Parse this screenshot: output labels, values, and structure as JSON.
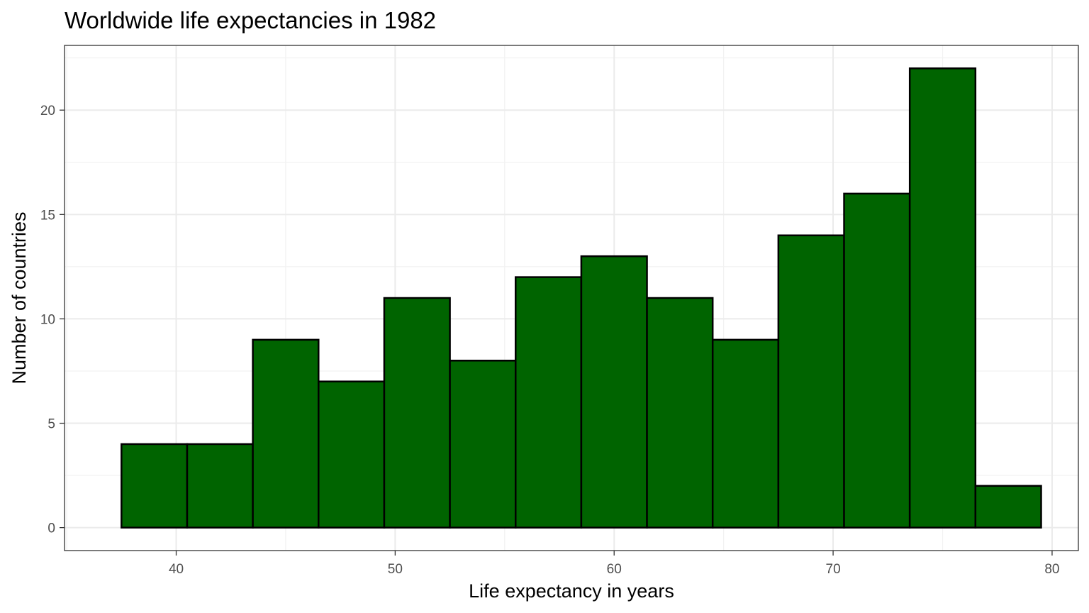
{
  "chart_data": {
    "type": "bar",
    "title": "Worldwide life expectancies in 1982",
    "xlabel": "Life expectancy in years",
    "ylabel": "Number of countries",
    "bin_width": 3,
    "bins": [
      {
        "x_start": 37.5,
        "x_end": 40.5,
        "count": 4
      },
      {
        "x_start": 40.5,
        "x_end": 43.5,
        "count": 4
      },
      {
        "x_start": 43.5,
        "x_end": 46.5,
        "count": 9
      },
      {
        "x_start": 46.5,
        "x_end": 49.5,
        "count": 7
      },
      {
        "x_start": 49.5,
        "x_end": 52.5,
        "count": 11
      },
      {
        "x_start": 52.5,
        "x_end": 55.5,
        "count": 8
      },
      {
        "x_start": 55.5,
        "x_end": 58.5,
        "count": 12
      },
      {
        "x_start": 58.5,
        "x_end": 61.5,
        "count": 13
      },
      {
        "x_start": 61.5,
        "x_end": 64.5,
        "count": 11
      },
      {
        "x_start": 64.5,
        "x_end": 67.5,
        "count": 9
      },
      {
        "x_start": 67.5,
        "x_end": 70.5,
        "count": 14
      },
      {
        "x_start": 70.5,
        "x_end": 73.5,
        "count": 16
      },
      {
        "x_start": 73.5,
        "x_end": 76.5,
        "count": 22
      },
      {
        "x_start": 76.5,
        "x_end": 79.5,
        "count": 2
      }
    ],
    "xlim": [
      34.9,
      81.2
    ],
    "ylim": [
      -1.1,
      23.1
    ],
    "x_ticks": [
      40,
      50,
      60,
      70,
      80
    ],
    "x_tick_labels": [
      "40",
      "50",
      "60",
      "70",
      "80"
    ],
    "y_ticks": [
      0,
      5,
      10,
      15,
      20
    ],
    "y_tick_labels": [
      "0",
      "5",
      "10",
      "15",
      "20"
    ],
    "grid": true,
    "legend": "none",
    "colors": {
      "bar_fill": "#006400",
      "bar_outline": "#000000",
      "panel_border": "#333333",
      "grid": "#ebebeb",
      "tick_label": "#4d4d4d"
    }
  }
}
